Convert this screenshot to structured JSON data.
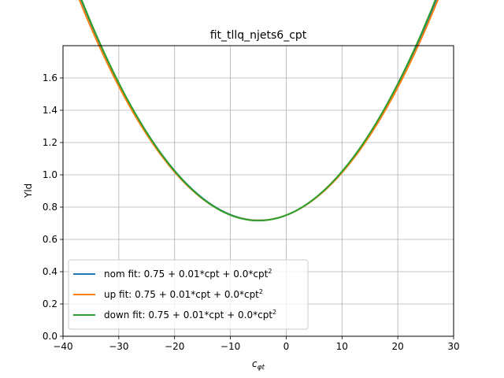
{
  "chart_data": {
    "type": "line",
    "title": "fit_tllq_njets6_cpt",
    "xlabel_base": "c",
    "xlabel_sub": "φt",
    "ylabel": "Yld",
    "xlim": [
      -40,
      30
    ],
    "ylim": [
      0,
      1.8
    ],
    "xticks": [
      -40,
      -30,
      -20,
      -10,
      0,
      10,
      20,
      30
    ],
    "yticks": [
      0.0,
      0.2,
      0.4,
      0.6,
      0.8,
      1.0,
      1.2,
      1.4,
      1.6
    ],
    "grid": true,
    "legend_position": "lower-left",
    "series": [
      {
        "name": "nom fit: 0.75 + 0.01*cpt + 0.0*cpt",
        "name_sup": "2",
        "color": "#1f77b4",
        "coeffs": [
          0.75,
          0.0131,
          0.001344
        ]
      },
      {
        "name": "up fit: 0.75 + 0.01*cpt + 0.0*cpt",
        "name_sup": "2",
        "color": "#ff7f0e",
        "coeffs": [
          0.75,
          0.0131,
          0.001324
        ]
      },
      {
        "name": "down fit: 0.75 + 0.01*cpt + 0.0*cpt",
        "name_sup": "2",
        "color": "#2ca02c",
        "coeffs": [
          0.75,
          0.0135,
          0.00136
        ]
      }
    ]
  }
}
